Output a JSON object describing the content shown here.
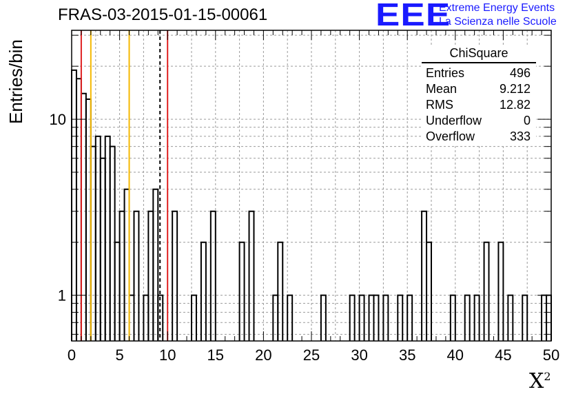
{
  "title": "FRAS-03-2015-01-15-00061",
  "ylabel": "Entries/bin",
  "xlabel_base": "X",
  "xlabel_sup": "2",
  "logo": {
    "mark": "EEE",
    "line1": "Extreme Energy Events",
    "line2": "La Scienza nelle Scuole",
    "color": "#1a1aff"
  },
  "stats": {
    "header": "ChiSquare",
    "rows": [
      {
        "label": "Entries",
        "value": "496"
      },
      {
        "label": "Mean",
        "value": "9.212"
      },
      {
        "label": "RMS",
        "value": "12.82"
      },
      {
        "label": "Underflow",
        "value": "0"
      },
      {
        "label": "Overflow",
        "value": "333"
      }
    ]
  },
  "chart_data": {
    "type": "bar",
    "style": "step-histogram",
    "title": "FRAS-03-2015-01-15-00061",
    "xlabel": "X²",
    "ylabel": "Entries/bin",
    "yscale": "log",
    "xlim": [
      0,
      50
    ],
    "ylim": [
      0.55,
      32
    ],
    "bin_width": 0.5,
    "grid": true,
    "x_ticks": [
      "0",
      "5",
      "10",
      "15",
      "20",
      "25",
      "30",
      "35",
      "40",
      "45",
      "50"
    ],
    "y_ticks": [
      "1",
      "10"
    ],
    "bins": [
      {
        "x": 0.0,
        "y": 19
      },
      {
        "x": 0.5,
        "y": 17
      },
      {
        "x": 1.0,
        "y": 14
      },
      {
        "x": 1.5,
        "y": 13
      },
      {
        "x": 2.0,
        "y": 7
      },
      {
        "x": 2.5,
        "y": 8
      },
      {
        "x": 3.0,
        "y": 6
      },
      {
        "x": 3.5,
        "y": 8
      },
      {
        "x": 4.0,
        "y": 7
      },
      {
        "x": 4.5,
        "y": 2
      },
      {
        "x": 5.0,
        "y": 3
      },
      {
        "x": 5.5,
        "y": 4
      },
      {
        "x": 6.0,
        "y": 1
      },
      {
        "x": 6.5,
        "y": 3
      },
      {
        "x": 7.5,
        "y": 1
      },
      {
        "x": 8.0,
        "y": 3
      },
      {
        "x": 8.5,
        "y": 4
      },
      {
        "x": 9.0,
        "y": 1
      },
      {
        "x": 10.5,
        "y": 3
      },
      {
        "x": 12.5,
        "y": 1
      },
      {
        "x": 13.5,
        "y": 2
      },
      {
        "x": 14.5,
        "y": 3
      },
      {
        "x": 17.5,
        "y": 2
      },
      {
        "x": 18.5,
        "y": 3
      },
      {
        "x": 21.0,
        "y": 1
      },
      {
        "x": 21.5,
        "y": 2
      },
      {
        "x": 22.5,
        "y": 1
      },
      {
        "x": 26.0,
        "y": 1
      },
      {
        "x": 29.0,
        "y": 1
      },
      {
        "x": 30.0,
        "y": 1
      },
      {
        "x": 31.0,
        "y": 1
      },
      {
        "x": 31.5,
        "y": 1
      },
      {
        "x": 32.5,
        "y": 1
      },
      {
        "x": 34.0,
        "y": 1
      },
      {
        "x": 35.0,
        "y": 1
      },
      {
        "x": 36.5,
        "y": 3
      },
      {
        "x": 37.0,
        "y": 2
      },
      {
        "x": 39.5,
        "y": 1
      },
      {
        "x": 41.0,
        "y": 1
      },
      {
        "x": 42.0,
        "y": 1
      },
      {
        "x": 43.0,
        "y": 2
      },
      {
        "x": 44.5,
        "y": 2
      },
      {
        "x": 45.5,
        "y": 1
      },
      {
        "x": 47.0,
        "y": 1
      },
      {
        "x": 49.0,
        "y": 1
      },
      {
        "x": 49.5,
        "y": 1
      }
    ],
    "vertical_lines": [
      {
        "name": "red-line-1",
        "x": 1.0,
        "color": "#e02020",
        "dash": false
      },
      {
        "name": "orange-line-1",
        "x": 2.0,
        "color": "#f5b800",
        "dash": false
      },
      {
        "name": "orange-line-2",
        "x": 6.0,
        "color": "#f5b800",
        "dash": false
      },
      {
        "name": "mean-dashed-line",
        "x": 9.212,
        "color": "#000000",
        "dash": true
      },
      {
        "name": "red-line-2",
        "x": 10.0,
        "color": "#e02020",
        "dash": false
      }
    ]
  }
}
